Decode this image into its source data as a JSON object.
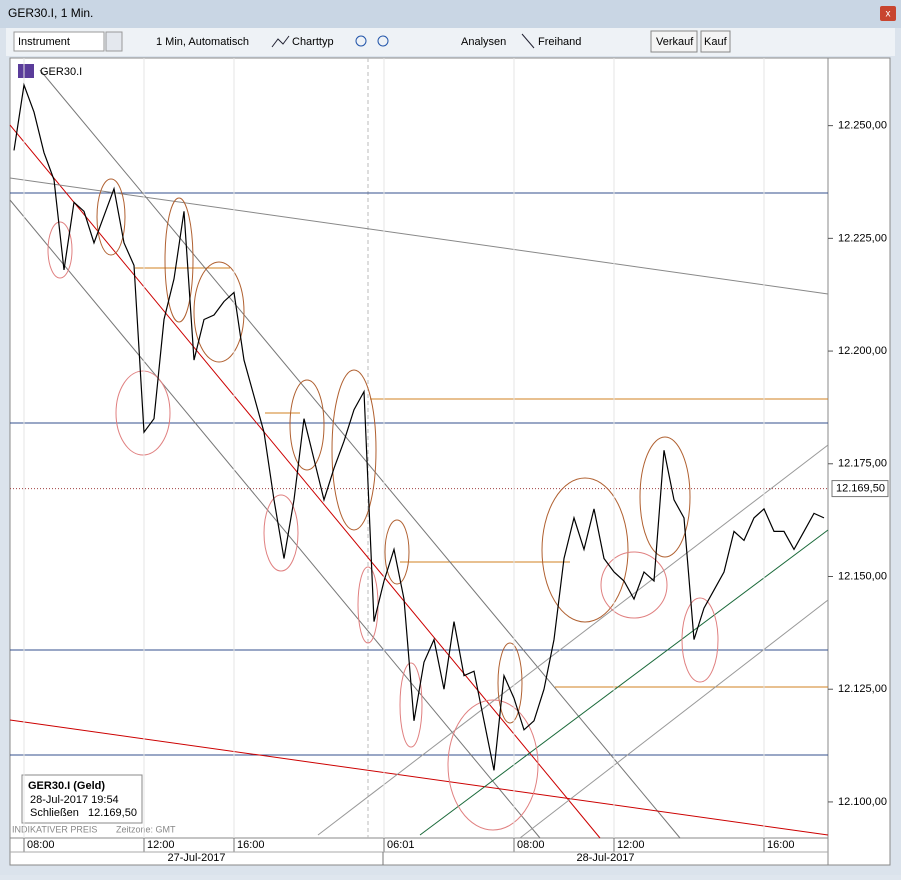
{
  "window": {
    "title": "GER30.I, 1 Min."
  },
  "toolbar": {
    "instrument": "Instrument",
    "interval": "1 Min, Automatisch",
    "charttype": "Charttyp",
    "analysis": "Analysen",
    "freehand": "Freihand",
    "sell": "Verkauf",
    "buy": "Kauf"
  },
  "chart_data": {
    "type": "line",
    "title": "GER30.I",
    "categories": [
      null,
      "08:00",
      null,
      null,
      null,
      null,
      null,
      null,
      null,
      null,
      null,
      null,
      null,
      "12:00",
      null,
      null,
      null,
      null,
      null,
      null,
      null,
      null,
      "16:00",
      null,
      null,
      null,
      null,
      null,
      null,
      null,
      null,
      null,
      null,
      null,
      null,
      null,
      null,
      "06:01",
      null,
      null,
      null,
      null,
      null,
      null,
      null,
      null,
      null,
      null,
      null,
      null,
      "08:00",
      null,
      null,
      null,
      null,
      null,
      null,
      null,
      null,
      null,
      "12:00",
      null,
      null,
      null,
      null,
      null,
      null,
      null,
      null,
      null,
      null,
      null,
      null,
      null,
      null,
      "16:00",
      null,
      null,
      null,
      null,
      null,
      null
    ],
    "values": [
      12244.5,
      12259,
      12253,
      12244,
      12238,
      12218,
      12233,
      12231,
      12224,
      12230,
      12236,
      12224,
      12219,
      12182,
      12185,
      12207,
      12216,
      12231,
      12198,
      12207,
      12208,
      12211,
      12213,
      12198,
      12190,
      12182,
      12167,
      12154,
      12167,
      12185,
      12176,
      12167,
      12174,
      12180,
      12187,
      12191,
      12140,
      12149,
      12156,
      12145,
      12118,
      12131,
      12136,
      12125,
      12140,
      12128,
      12129,
      12118,
      12107,
      12128,
      12123,
      12116,
      12118,
      12125,
      12136,
      12154,
      12163,
      12156,
      12165,
      12154,
      12151,
      12149,
      12145,
      12151,
      12149,
      12178,
      12167,
      12163,
      12136,
      12143,
      12147,
      12151,
      12160,
      12158,
      12163,
      12165,
      12160,
      12160,
      12156,
      12160,
      12164,
      12163
    ],
    "color": "#000000",
    "x_groups": [
      "27-Jul-2017",
      "28-Jul-2017"
    ],
    "ylim": [
      12092,
      12265
    ],
    "yticks": [
      {
        "value": 12100,
        "label": "12.100,00"
      },
      {
        "value": 12125,
        "label": "12.125,00"
      },
      {
        "value": 12150,
        "label": "12.150,00"
      },
      {
        "value": 12175,
        "label": "12.175,00"
      },
      {
        "value": 12200,
        "label": "12.200,00"
      },
      {
        "value": 12225,
        "label": "12.225,00"
      },
      {
        "value": 12250,
        "label": "12.250,00"
      }
    ],
    "current": {
      "value": 12169.5,
      "label": "12.169,50"
    },
    "info": {
      "title": "GER30.I (Geld)",
      "time": "28-Jul-2017 19:54",
      "close_label": "Schließen",
      "close": "12.169,50"
    },
    "footer": {
      "note": "INDIKATIVER PREIS",
      "timezone": "Zeitzone: GMT"
    }
  }
}
